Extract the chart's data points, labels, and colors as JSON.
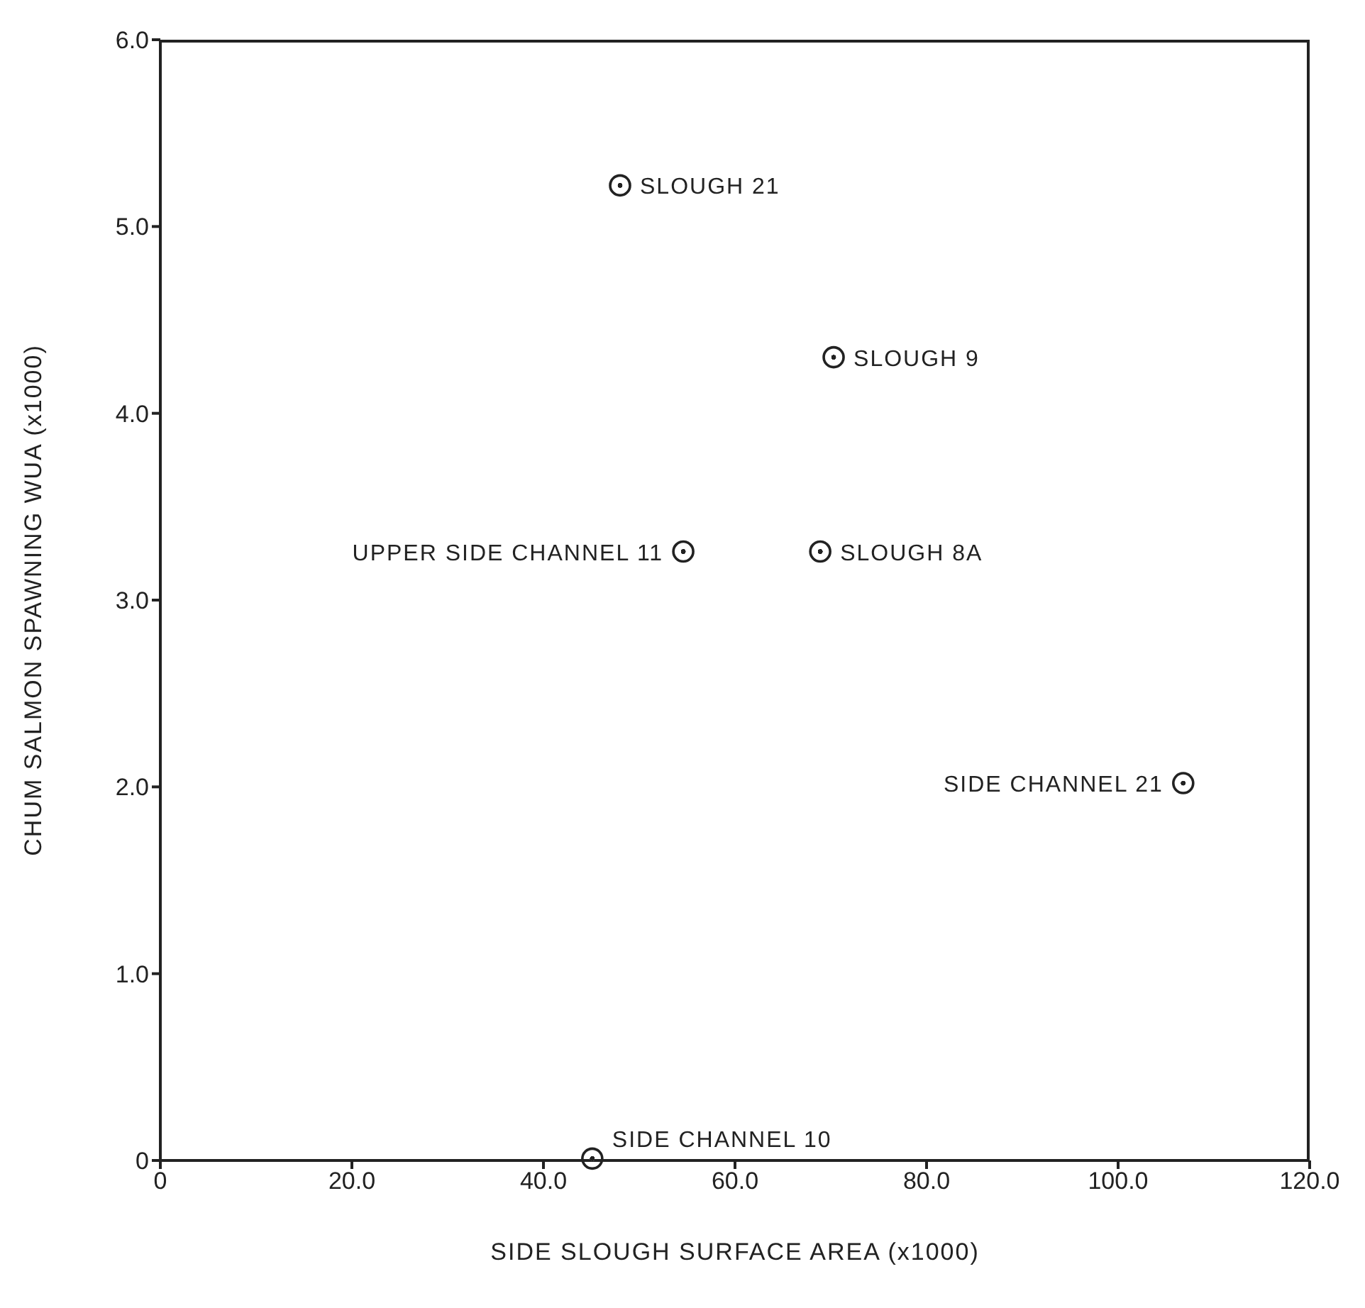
{
  "chart_data": {
    "type": "scatter",
    "xlabel": "SIDE SLOUGH SURFACE AREA (x1000)",
    "ylabel": "CHUM SALMON SPAWNING WUA (x1000)",
    "x": [
      48.0,
      70.3,
      54.6,
      68.9,
      106.8,
      45.1
    ],
    "series": [
      {
        "color": "#222222",
        "values": [
          5.22,
          4.3,
          3.26,
          3.26,
          2.02,
          0.01
        ]
      }
    ],
    "marker": "circle",
    "grid": false,
    "xlim": [
      0,
      120
    ],
    "ylim": [
      0,
      6
    ],
    "xticks": [
      0,
      {
        "value": 20,
        "label": "20.0"
      },
      {
        "value": 40,
        "label": "40.0"
      },
      {
        "value": 60,
        "label": "60.0"
      },
      {
        "value": 80,
        "label": "80.0"
      },
      {
        "value": 100,
        "label": "100.0"
      },
      {
        "value": 120,
        "label": "120.0"
      }
    ],
    "yticks": [
      0,
      {
        "value": 1,
        "label": "1.0"
      },
      {
        "value": 2,
        "label": "2.0"
      },
      {
        "value": 3,
        "label": "3.0"
      },
      {
        "value": 4,
        "label": "4.0"
      },
      {
        "value": 5,
        "label": "5.0"
      },
      {
        "value": 6,
        "label": "6.0"
      }
    ],
    "annotations": [
      {
        "text": "SLOUGH 21",
        "x": 48.0,
        "y": 5.22
      },
      {
        "text": "SLOUGH 9",
        "x": 70.3,
        "y": 4.3
      },
      {
        "text": "UPPER SIDE CHANNEL 11",
        "x": 54.6,
        "y": 3.26
      },
      {
        "text": "SLOUGH 8A",
        "x": 68.9,
        "y": 3.26
      },
      {
        "text": "SIDE CHANNEL 21",
        "x": 106.8,
        "y": 2.02
      },
      {
        "text": "SIDE CHANNEL 10",
        "x": 45.1,
        "y": 0.01
      }
    ]
  }
}
